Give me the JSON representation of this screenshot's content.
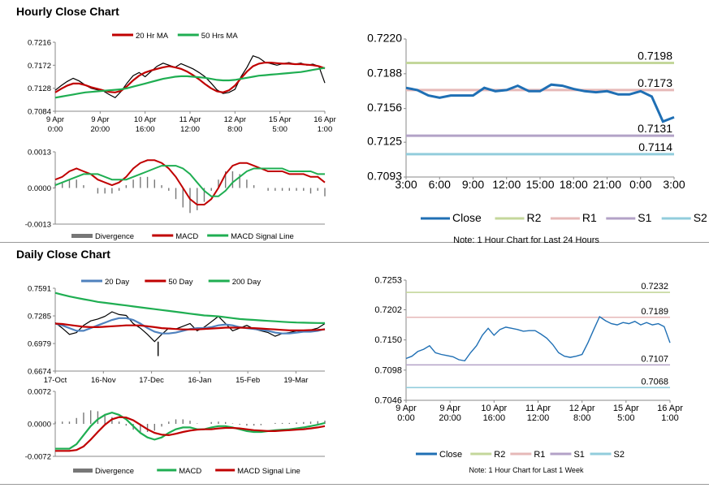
{
  "sections": {
    "hourly_title": "Hourly Close Chart",
    "daily_title": "Daily Close Chart"
  },
  "colors": {
    "close": "#1f6fb4",
    "ma_red": "#c00000",
    "ma_green": "#1fae52",
    "ma_blue": "#4f81bd",
    "divergence": "#777777",
    "r2": "#c4d79b",
    "r1": "#e6b9b8",
    "s1": "#b3a2c7",
    "s2": "#92cddc",
    "price_black": "#000000"
  },
  "chart_data": [
    {
      "id": "hourly_price",
      "type": "line",
      "title": "",
      "legend": [
        "20 Hr MA",
        "50 Hrs MA"
      ],
      "ylim": [
        0.7084,
        0.7216
      ],
      "yticks": [
        "0.7216",
        "0.7172",
        "0.7128",
        "0.7084"
      ],
      "xticks": [
        [
          "9 Apr",
          "0:00"
        ],
        [
          "9 Apr",
          "20:00"
        ],
        [
          "10 Apr",
          "16:00"
        ],
        [
          "11 Apr",
          "12:00"
        ],
        [
          "12 Apr",
          "8:00"
        ],
        [
          "15 Apr",
          "5:00"
        ],
        [
          "16 Apr",
          "1:00"
        ]
      ],
      "series": [
        {
          "name": "Close",
          "color": "#000000",
          "values": [
            0.7124,
            0.7133,
            0.7141,
            0.7147,
            0.7142,
            0.7134,
            0.7128,
            0.7125,
            0.7123,
            0.7116,
            0.711,
            0.7122,
            0.7138,
            0.7152,
            0.7158,
            0.715,
            0.716,
            0.717,
            0.7176,
            0.7172,
            0.7168,
            0.7175,
            0.717,
            0.7165,
            0.7158,
            0.715,
            0.7138,
            0.7125,
            0.7118,
            0.712,
            0.7126,
            0.715,
            0.7168,
            0.719,
            0.7186,
            0.7178,
            0.7175,
            0.7172,
            0.7175,
            0.7177,
            0.7174,
            0.7176,
            0.7172,
            0.7174,
            0.717,
            0.7138
          ]
        },
        {
          "name": "20 Hr MA",
          "color": "#c00000",
          "values": [
            0.712,
            0.7127,
            0.7133,
            0.7137,
            0.7137,
            0.7134,
            0.713,
            0.7127,
            0.7124,
            0.7121,
            0.712,
            0.7123,
            0.7132,
            0.7143,
            0.7152,
            0.7158,
            0.7162,
            0.7165,
            0.7168,
            0.717,
            0.7168,
            0.7165,
            0.716,
            0.7153,
            0.7145,
            0.7136,
            0.7128,
            0.7122,
            0.712,
            0.7124,
            0.7133,
            0.7147,
            0.716,
            0.717,
            0.7175,
            0.7177,
            0.7177,
            0.7176,
            0.7175,
            0.7175,
            0.7174,
            0.7174,
            0.7173,
            0.7172,
            0.717,
            0.7166
          ]
        },
        {
          "name": "50 Hrs MA",
          "color": "#1fae52",
          "values": [
            0.711,
            0.7112,
            0.7114,
            0.7116,
            0.7118,
            0.712,
            0.7121,
            0.7122,
            0.7123,
            0.7124,
            0.7125,
            0.7126,
            0.7128,
            0.7131,
            0.7134,
            0.7137,
            0.714,
            0.7143,
            0.7146,
            0.7148,
            0.715,
            0.7151,
            0.7151,
            0.715,
            0.7149,
            0.7148,
            0.7146,
            0.7144,
            0.7143,
            0.7143,
            0.7144,
            0.7146,
            0.7148,
            0.715,
            0.7152,
            0.7153,
            0.7154,
            0.7155,
            0.7156,
            0.7157,
            0.7158,
            0.7159,
            0.7161,
            0.7163,
            0.7165,
            0.7167
          ]
        }
      ]
    },
    {
      "id": "hourly_macd",
      "type": "line",
      "legend": [
        "Divergence",
        "MACD",
        "MACD Signal Line"
      ],
      "ylim": [
        -0.0013,
        0.0013
      ],
      "yticks": [
        "0.0013",
        "0.0000",
        "-0.0013"
      ],
      "series": [
        {
          "name": "MACD",
          "color": "#c00000",
          "values": [
            0.0003,
            0.0004,
            0.0006,
            0.0007,
            0.0006,
            0.0005,
            0.0003,
            0.0002,
            0.0001,
            0.0002,
            0.0004,
            0.0007,
            0.0009,
            0.001,
            0.001,
            0.0009,
            0.0007,
            0.0004,
            0.0,
            -0.0004,
            -0.0006,
            -0.0006,
            -0.0004,
            0.0,
            0.0005,
            0.0008,
            0.0009,
            0.0009,
            0.0008,
            0.0007,
            0.0006,
            0.0006,
            0.0006,
            0.0005,
            0.0005,
            0.0005,
            0.0004,
            0.0004,
            0.0002
          ]
        },
        {
          "name": "MACD Signal Line",
          "color": "#1fae52",
          "values": [
            0.0001,
            0.0002,
            0.0003,
            0.0004,
            0.0005,
            0.0005,
            0.0005,
            0.0004,
            0.0003,
            0.0003,
            0.0003,
            0.0004,
            0.0005,
            0.0006,
            0.0007,
            0.0008,
            0.0008,
            0.0008,
            0.0007,
            0.0005,
            0.0002,
            -0.0001,
            -0.0003,
            -0.0003,
            -0.0001,
            0.0002,
            0.0004,
            0.0006,
            0.0007,
            0.0007,
            0.0007,
            0.0007,
            0.0007,
            0.0006,
            0.0006,
            0.0006,
            0.0006,
            0.0005,
            0.0005
          ]
        },
        {
          "name": "Divergence",
          "color": "#777777",
          "values": [
            0.0002,
            0.0002,
            0.0003,
            0.0003,
            0.0001,
            0.0,
            -0.0002,
            -0.0002,
            -0.0002,
            -0.0001,
            0.0001,
            0.0003,
            0.0004,
            0.0004,
            0.0003,
            0.0001,
            -0.0001,
            -0.0004,
            -0.0007,
            -0.0009,
            -0.0008,
            -0.0005,
            -0.0001,
            0.0003,
            0.0006,
            0.0006,
            0.0005,
            0.0003,
            0.0001,
            0.0,
            -0.0001,
            -0.0001,
            -0.0001,
            -0.0001,
            -0.0001,
            -0.0001,
            -0.0002,
            -0.0001,
            -0.0003
          ]
        }
      ]
    },
    {
      "id": "hourly_24h",
      "type": "line",
      "ylim": [
        0.7093,
        0.722
      ],
      "yticks": [
        "0.7220",
        "0.7188",
        "0.7156",
        "0.7125",
        "0.7093"
      ],
      "xticks": [
        "3:00",
        "6:00",
        "9:00",
        "12:00",
        "15:00",
        "18:00",
        "21:00",
        "0:00",
        "3:00"
      ],
      "series": [
        {
          "name": "Close",
          "color": "#1f6fb4",
          "values": [
            0.7175,
            0.7173,
            0.7168,
            0.7166,
            0.7168,
            0.7168,
            0.7168,
            0.7175,
            0.7172,
            0.7173,
            0.7177,
            0.7172,
            0.7172,
            0.7178,
            0.7177,
            0.7174,
            0.7172,
            0.7171,
            0.7172,
            0.7169,
            0.7169,
            0.7172,
            0.7167,
            0.7144,
            0.7148
          ]
        }
      ],
      "levels": [
        {
          "name": "R2",
          "value": 0.7198,
          "label": "0.7198"
        },
        {
          "name": "R1",
          "value": 0.7173,
          "label": "0.7173"
        },
        {
          "name": "S1",
          "value": 0.7131,
          "label": "0.7131"
        },
        {
          "name": "S2",
          "value": 0.7114,
          "label": "0.7114"
        }
      ],
      "legend": [
        "Close",
        "R2",
        "R1",
        "S1",
        "S2"
      ],
      "note": "Note: 1 Hour Chart for Last 24 Hours"
    },
    {
      "id": "daily_price",
      "type": "line",
      "legend": [
        "20 Day",
        "50 Day",
        "200 Day"
      ],
      "ylim": [
        0.6674,
        0.7591
      ],
      "yticks": [
        "0.7591",
        "0.7285",
        "0.6979",
        "0.6674"
      ],
      "xticks": [
        "17-Oct",
        "16-Nov",
        "17-Dec",
        "16-Jan",
        "15-Feb",
        "19-Mar"
      ],
      "series": [
        {
          "name": "Close",
          "color": "#000000",
          "values": [
            0.721,
            0.715,
            0.708,
            0.71,
            0.718,
            0.723,
            0.725,
            0.728,
            0.733,
            0.73,
            0.729,
            0.72,
            0.715,
            0.708,
            0.7,
            0.708,
            0.715,
            0.714,
            0.717,
            0.72,
            0.712,
            0.716,
            0.722,
            0.728,
            0.72,
            0.712,
            0.715,
            0.718,
            0.714,
            0.712,
            0.71,
            0.706,
            0.709,
            0.71,
            0.712,
            0.711,
            0.713,
            0.715,
            0.72
          ]
        },
        {
          "name": "20 Day",
          "color": "#4f81bd",
          "values": [
            0.72,
            0.718,
            0.715,
            0.712,
            0.712,
            0.715,
            0.718,
            0.721,
            0.724,
            0.726,
            0.726,
            0.724,
            0.72,
            0.715,
            0.711,
            0.709,
            0.709,
            0.71,
            0.712,
            0.714,
            0.715,
            0.715,
            0.716,
            0.718,
            0.719,
            0.718,
            0.716,
            0.715,
            0.714,
            0.713,
            0.712,
            0.71,
            0.709,
            0.709,
            0.71,
            0.711,
            0.711,
            0.712,
            0.714
          ]
        },
        {
          "name": "50 Day",
          "color": "#c00000",
          "values": [
            0.72,
            0.7195,
            0.7185,
            0.7175,
            0.7165,
            0.716,
            0.716,
            0.7165,
            0.717,
            0.7175,
            0.718,
            0.718,
            0.7178,
            0.717,
            0.716,
            0.715,
            0.7145,
            0.714,
            0.7135,
            0.7135,
            0.7135,
            0.714,
            0.7145,
            0.715,
            0.7155,
            0.7155,
            0.7155,
            0.7152,
            0.715,
            0.7145,
            0.714,
            0.7135,
            0.713,
            0.7125,
            0.7125,
            0.7125,
            0.7128,
            0.713,
            0.7135
          ]
        },
        {
          "name": "200 Day",
          "color": "#1fae52",
          "values": [
            0.754,
            0.752,
            0.75,
            0.7485,
            0.747,
            0.7455,
            0.744,
            0.743,
            0.742,
            0.741,
            0.74,
            0.739,
            0.738,
            0.737,
            0.736,
            0.735,
            0.734,
            0.733,
            0.732,
            0.731,
            0.73,
            0.729,
            0.7285,
            0.728,
            0.727,
            0.726,
            0.725,
            0.7245,
            0.724,
            0.7235,
            0.723,
            0.7225,
            0.722,
            0.7215,
            0.7212,
            0.721,
            0.7208,
            0.7206,
            0.7205
          ]
        }
      ]
    },
    {
      "id": "daily_macd",
      "type": "line",
      "legend": [
        "Divergence",
        "MACD",
        "MACD Signal Line"
      ],
      "ylim": [
        -0.0072,
        0.0072
      ],
      "yticks": [
        "0.0072",
        "0.0000",
        "-0.0072"
      ],
      "series": [
        {
          "name": "MACD",
          "color": "#1fae52",
          "values": [
            -0.0055,
            -0.0055,
            -0.0055,
            -0.0045,
            -0.0025,
            -0.0005,
            0.001,
            0.002,
            0.0025,
            0.002,
            0.001,
            -0.0005,
            -0.002,
            -0.003,
            -0.0035,
            -0.003,
            -0.002,
            -0.0012,
            -0.0008,
            -0.0008,
            -0.0012,
            -0.0012,
            -0.0008,
            -0.0005,
            -0.0005,
            -0.0008,
            -0.0012,
            -0.0016,
            -0.0018,
            -0.0018,
            -0.0016,
            -0.0014,
            -0.0013,
            -0.0012,
            -0.001,
            -0.0008,
            -0.0005,
            -0.0002,
            0.0002
          ]
        },
        {
          "name": "MACD Signal Line",
          "color": "#c00000",
          "values": [
            -0.006,
            -0.006,
            -0.006,
            -0.0058,
            -0.005,
            -0.0035,
            -0.0018,
            -0.0002,
            0.001,
            0.0015,
            0.0014,
            0.0008,
            -0.0002,
            -0.0012,
            -0.002,
            -0.0024,
            -0.0025,
            -0.0022,
            -0.0018,
            -0.0015,
            -0.0013,
            -0.0012,
            -0.0012,
            -0.001,
            -0.0009,
            -0.0009,
            -0.001,
            -0.0012,
            -0.0014,
            -0.0015,
            -0.0016,
            -0.0016,
            -0.0015,
            -0.0014,
            -0.0013,
            -0.0012,
            -0.001,
            -0.0008,
            -0.0005
          ]
        },
        {
          "name": "Divergence",
          "color": "#777777",
          "values": [
            0.0005,
            0.0005,
            0.0005,
            0.0013,
            0.0025,
            0.003,
            0.0028,
            0.0022,
            0.0015,
            0.0005,
            -0.0004,
            -0.0013,
            -0.0018,
            -0.0018,
            -0.0015,
            -0.0006,
            0.0005,
            0.001,
            0.001,
            0.0007,
            0.0001,
            0.0,
            0.0004,
            0.0005,
            0.0004,
            0.0001,
            -0.0002,
            -0.0004,
            -0.0004,
            -0.0003,
            0.0,
            0.0002,
            0.0002,
            0.0002,
            0.0003,
            0.0004,
            0.0005,
            0.0006,
            0.0007
          ]
        }
      ]
    },
    {
      "id": "weekly_hourly",
      "type": "line",
      "ylim": [
        0.7046,
        0.7253
      ],
      "yticks": [
        "0.7253",
        "0.7202",
        "0.7150",
        "0.7098",
        "0.7046"
      ],
      "xticks": [
        [
          "9 Apr",
          "0:00"
        ],
        [
          "9 Apr",
          "20:00"
        ],
        [
          "10 Apr",
          "16:00"
        ],
        [
          "11 Apr",
          "12:00"
        ],
        [
          "12 Apr",
          "8:00"
        ],
        [
          "15 Apr",
          "5:00"
        ],
        [
          "16 Apr",
          "1:00"
        ]
      ],
      "series": [
        {
          "name": "Close",
          "color": "#1f6fb4",
          "values": [
            0.7118,
            0.7122,
            0.713,
            0.7134,
            0.714,
            0.7128,
            0.7125,
            0.7123,
            0.7121,
            0.7116,
            0.7114,
            0.7128,
            0.714,
            0.7158,
            0.717,
            0.7158,
            0.7168,
            0.7172,
            0.717,
            0.7168,
            0.7165,
            0.7166,
            0.7166,
            0.716,
            0.7153,
            0.7142,
            0.7128,
            0.7122,
            0.712,
            0.7122,
            0.7125,
            0.7145,
            0.7168,
            0.719,
            0.7183,
            0.7178,
            0.7176,
            0.718,
            0.7178,
            0.7182,
            0.7176,
            0.718,
            0.7176,
            0.7178,
            0.7173,
            0.7145
          ]
        }
      ],
      "levels": [
        {
          "name": "R2",
          "value": 0.7232,
          "label": "0.7232"
        },
        {
          "name": "R1",
          "value": 0.7189,
          "label": "0.7189"
        },
        {
          "name": "S1",
          "value": 0.7107,
          "label": "0.7107"
        },
        {
          "name": "S2",
          "value": 0.7068,
          "label": "0.7068"
        }
      ],
      "legend": [
        "Close",
        "R2",
        "R1",
        "S1",
        "S2"
      ],
      "note": "Note: 1 Hour Chart for Last 1 Week"
    }
  ]
}
